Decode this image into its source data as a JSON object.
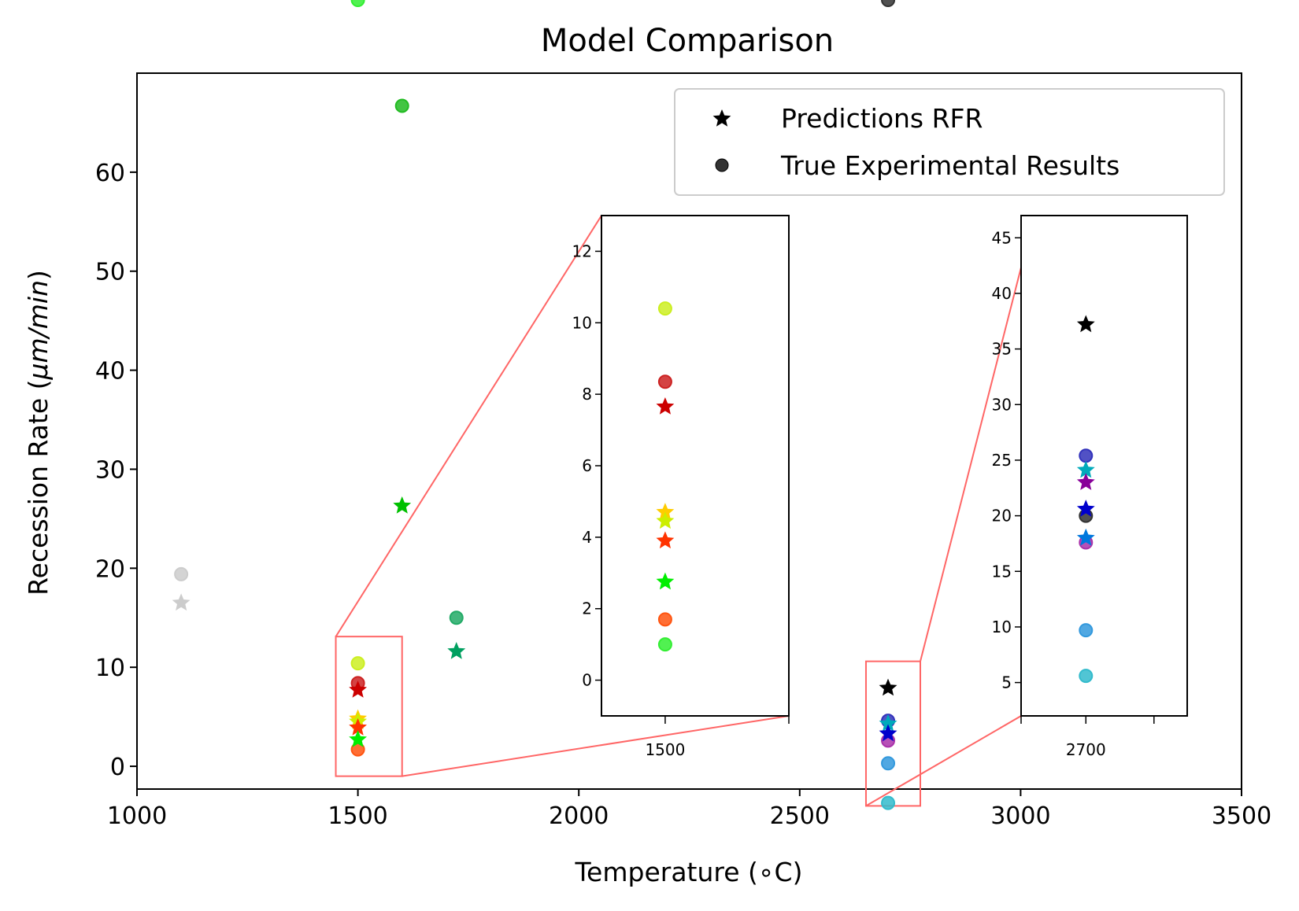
{
  "chart_data": {
    "type": "scatter",
    "title": "Model Comparison",
    "xlabel": "Temperature (∘C)",
    "ylabel_prefix": "Recession Rate (",
    "ylabel_unit": "μm/min",
    "ylabel_suffix": ")",
    "xlim": [
      1000,
      3500
    ],
    "ylim": [
      -2.3,
      70
    ],
    "xticks": [
      1000,
      1500,
      2000,
      2500,
      3000,
      3500
    ],
    "yticks": [
      0,
      10,
      20,
      30,
      40,
      50,
      60
    ],
    "grid": false,
    "legend": {
      "position": "top-right",
      "entries": [
        {
          "label": "Predictions RFR",
          "marker": "star",
          "color": "#000000"
        },
        {
          "label": "True Experimental Results",
          "marker": "circle",
          "color": "#333333"
        }
      ]
    },
    "points": [
      {
        "x": 1100,
        "y": 19.4,
        "kind": "true",
        "color": "#cccccc"
      },
      {
        "x": 1100,
        "y": 16.5,
        "kind": "pred",
        "color": "#cccccc"
      },
      {
        "x": 1600,
        "y": 66.7,
        "kind": "true",
        "color": "#22bb22"
      },
      {
        "x": 1600,
        "y": 26.3,
        "kind": "pred",
        "color": "#00c000"
      },
      {
        "x": 1723,
        "y": 15.0,
        "kind": "true",
        "color": "#22aa66"
      },
      {
        "x": 1723,
        "y": 11.6,
        "kind": "pred",
        "color": "#00a060"
      },
      {
        "x": 1500,
        "y": 10.4,
        "kind": "true",
        "color": "#ccee22"
      },
      {
        "x": 1500,
        "y": 8.35,
        "kind": "true",
        "color": "#cc2222"
      },
      {
        "x": 1500,
        "y": 1.7,
        "kind": "true",
        "color": "#ff5511"
      },
      {
        "x": 1500,
        "y": 1.0,
        "kind": "true",
        "color": "#33ee33"
      },
      {
        "x": 1500,
        "y": 7.65,
        "kind": "pred",
        "color": "#cc0000"
      },
      {
        "x": 1500,
        "y": 4.7,
        "kind": "pred",
        "color": "#ffcc00"
      },
      {
        "x": 1500,
        "y": 4.45,
        "kind": "pred",
        "color": "#ccee00"
      },
      {
        "x": 1500,
        "y": 3.9,
        "kind": "pred",
        "color": "#ff3300"
      },
      {
        "x": 1500,
        "y": 2.75,
        "kind": "pred",
        "color": "#00ee00"
      },
      {
        "x": 2700,
        "y": 25.4,
        "kind": "true",
        "color": "#3333bb"
      },
      {
        "x": 2700,
        "y": 20.0,
        "kind": "true",
        "color": "#333333"
      },
      {
        "x": 2700,
        "y": 17.6,
        "kind": "true",
        "color": "#aa33aa"
      },
      {
        "x": 2700,
        "y": 9.7,
        "kind": "true",
        "color": "#3399dd"
      },
      {
        "x": 2700,
        "y": 5.6,
        "kind": "true",
        "color": "#33bbcc"
      },
      {
        "x": 2700,
        "y": 37.2,
        "kind": "pred",
        "color": "#000000"
      },
      {
        "x": 2700,
        "y": 24.1,
        "kind": "pred",
        "color": "#00aabb"
      },
      {
        "x": 2700,
        "y": 23.0,
        "kind": "pred",
        "color": "#880099"
      },
      {
        "x": 2700,
        "y": 20.6,
        "kind": "pred",
        "color": "#0000cc"
      },
      {
        "x": 2700,
        "y": 18.0,
        "kind": "pred",
        "color": "#0077dd"
      }
    ],
    "insets": [
      {
        "region_xlim": [
          1450,
          1600
        ],
        "region_ylim": [
          -1,
          13
        ],
        "yticks": [
          0,
          2,
          4,
          6,
          8,
          10,
          12
        ],
        "xticks": [
          1500
        ],
        "xtick_labels": [
          "1500"
        ]
      },
      {
        "region_xlim": [
          2650,
          2775
        ],
        "region_ylim": [
          2,
          47
        ],
        "yticks": [
          5,
          10,
          15,
          20,
          25,
          30,
          35,
          40,
          45
        ],
        "xticks": [
          2650,
          2700,
          2750
        ],
        "xtick_labels": [
          "",
          "2700",
          ""
        ]
      }
    ],
    "main_y_for_points": {
      "1500_true_10.4": 10.4,
      "1500_true_8.35": 8.4,
      "1500_true_1.7": 1.7,
      "1500_true_1.0": 1.0,
      "1500_pred_7.65": 7.7,
      "1500_pred_4.7": 4.8,
      "1500_pred_4.45": 4.5,
      "1500_pred_3.9": 3.9,
      "1500_pred_2.75": 2.7,
      "2700_true_25.4": 4.6,
      "2700_true_20.0": 3.2,
      "2700_true_17.6": 2.6,
      "2700_true_9.7": 0.3,
      "2700_true_5.6": -3.7,
      "2700_pred_37.2": 7.9,
      "2700_pred_24.1": 4.3,
      "2700_pred_23.0": 3.9,
      "2700_pred_20.6": 3.3,
      "2700_pred_18.0": 2.7
    }
  }
}
